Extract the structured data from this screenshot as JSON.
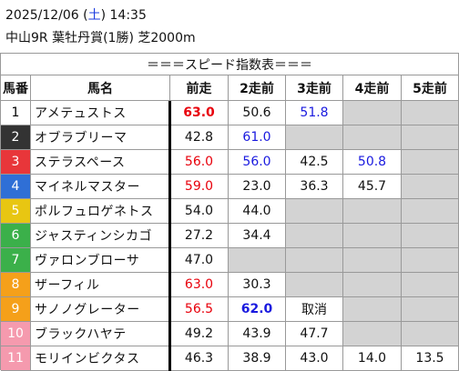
{
  "header": {
    "datetime": [
      "2025/12/06 (",
      "土",
      ") 14:35"
    ],
    "weekday_color": "#1a3adf",
    "race": "中山9R 葉牡丹賞(1勝) 芝2000m"
  },
  "table": {
    "title": "＝＝＝スピード指数表＝＝＝",
    "columns": [
      "馬番",
      "馬名",
      "前走",
      "2走前",
      "3走前",
      "4走前",
      "5走前"
    ],
    "empty_color": "#d3d3d3",
    "rows": [
      {
        "number": "1",
        "frame_color": "#ffffff",
        "number_color": "#000000",
        "name": "アメテュストス",
        "cells": [
          {
            "text": "63.0",
            "color": "#e8000b",
            "bold": true
          },
          {
            "text": "50.6"
          },
          {
            "text": "51.8",
            "color": "#1a1adf"
          },
          null,
          null
        ]
      },
      {
        "number": "2",
        "frame_color": "#333333",
        "number_color": "#ffffff",
        "name": "オブラブリーマ",
        "cells": [
          {
            "text": "42.8"
          },
          {
            "text": "61.0",
            "color": "#1a1adf"
          },
          null,
          null,
          null
        ]
      },
      {
        "number": "3",
        "frame_color": "#e8363a",
        "number_color": "#ffffff",
        "name": "ステラスペース",
        "cells": [
          {
            "text": "56.0",
            "color": "#e8000b"
          },
          {
            "text": "56.0",
            "color": "#1a1adf"
          },
          {
            "text": "42.5"
          },
          {
            "text": "50.8",
            "color": "#1a1adf"
          },
          null
        ]
      },
      {
        "number": "4",
        "frame_color": "#2f6fd6",
        "number_color": "#ffffff",
        "name": "マイネルマスター",
        "cells": [
          {
            "text": "59.0",
            "color": "#e8000b"
          },
          {
            "text": "23.0"
          },
          {
            "text": "36.3"
          },
          {
            "text": "45.7"
          },
          null
        ]
      },
      {
        "number": "5",
        "frame_color": "#e8c612",
        "number_color": "#ffffff",
        "name": "ポルフュロゲネトス",
        "cells": [
          {
            "text": "54.0"
          },
          {
            "text": "44.0"
          },
          null,
          null,
          null
        ]
      },
      {
        "number": "6",
        "frame_color": "#3bb04a",
        "number_color": "#ffffff",
        "name": "ジャスティンシカゴ",
        "cells": [
          {
            "text": "27.2"
          },
          {
            "text": "34.4"
          },
          null,
          null,
          null
        ]
      },
      {
        "number": "7",
        "frame_color": "#3bb04a",
        "number_color": "#ffffff",
        "name": "ヴァロンブローサ",
        "cells": [
          {
            "text": "47.0"
          },
          null,
          null,
          null,
          null
        ]
      },
      {
        "number": "8",
        "frame_color": "#f5a01a",
        "number_color": "#ffffff",
        "name": "ザーフィル",
        "cells": [
          {
            "text": "63.0",
            "color": "#e8000b"
          },
          {
            "text": "30.3"
          },
          null,
          null,
          null
        ]
      },
      {
        "number": "9",
        "frame_color": "#f5a01a",
        "number_color": "#ffffff",
        "name": "サノノグレーター",
        "cells": [
          {
            "text": "56.5",
            "color": "#e8000b"
          },
          {
            "text": "62.0",
            "color": "#1a1adf",
            "bold": true
          },
          {
            "text": "取消"
          },
          null,
          null
        ]
      },
      {
        "number": "10",
        "frame_color": "#f59aae",
        "number_color": "#ffffff",
        "name": "ブラックハヤテ",
        "cells": [
          {
            "text": "49.2"
          },
          {
            "text": "43.9"
          },
          {
            "text": "47.7"
          },
          null,
          null
        ]
      },
      {
        "number": "11",
        "frame_color": "#f59aae",
        "number_color": "#ffffff",
        "name": "モリインビクタス",
        "cells": [
          {
            "text": "46.3"
          },
          {
            "text": "38.9"
          },
          {
            "text": "43.0"
          },
          {
            "text": "14.0"
          },
          {
            "text": "13.5"
          }
        ]
      }
    ]
  }
}
